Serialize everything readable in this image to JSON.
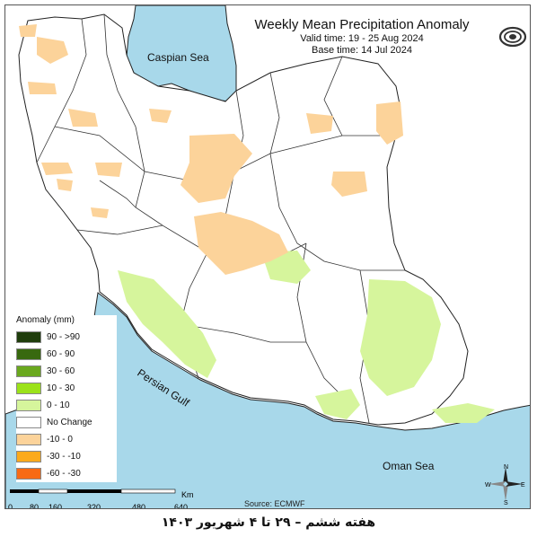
{
  "title": {
    "main": "Weekly Mean Precipitation Anomaly",
    "valid": "Valid time: 19 - 25 Aug 2024",
    "base": "Base time: 14 Jul 2024"
  },
  "labels": {
    "caspian": "Caspian Sea",
    "persian_gulf": "Persian Gulf",
    "oman_sea": "Oman Sea"
  },
  "legend": {
    "title": "Anomaly (mm)",
    "items": [
      {
        "label": "90 - >90",
        "color": "#1f3d0c"
      },
      {
        "label": "60 - 90",
        "color": "#38690f"
      },
      {
        "label": "30 - 60",
        "color": "#6aa81e"
      },
      {
        "label": "10 - 30",
        "color": "#9be21a"
      },
      {
        "label": "0 - 10",
        "color": "#d6f59c"
      },
      {
        "label": "No Change",
        "color": "#ffffff"
      },
      {
        "label": "-10 - 0",
        "color": "#fcd39a"
      },
      {
        "label": "-30 - -10",
        "color": "#fcaa1c"
      },
      {
        "label": "-60 - -30",
        "color": "#f86a14"
      }
    ]
  },
  "scale": {
    "unit": "Km",
    "ticks": [
      "0",
      "80",
      "160",
      "320",
      "480",
      "640"
    ]
  },
  "source": "Source: ECMWF",
  "caption": "هفته ششم – ۲۹ تا ۴ شهریور ۱۴۰۳",
  "compass": {
    "n": "N",
    "s": "S",
    "e": "E",
    "w": "W"
  },
  "colors": {
    "sea": "#a8d8ea",
    "land": "#ffffff",
    "border": "#222222"
  }
}
